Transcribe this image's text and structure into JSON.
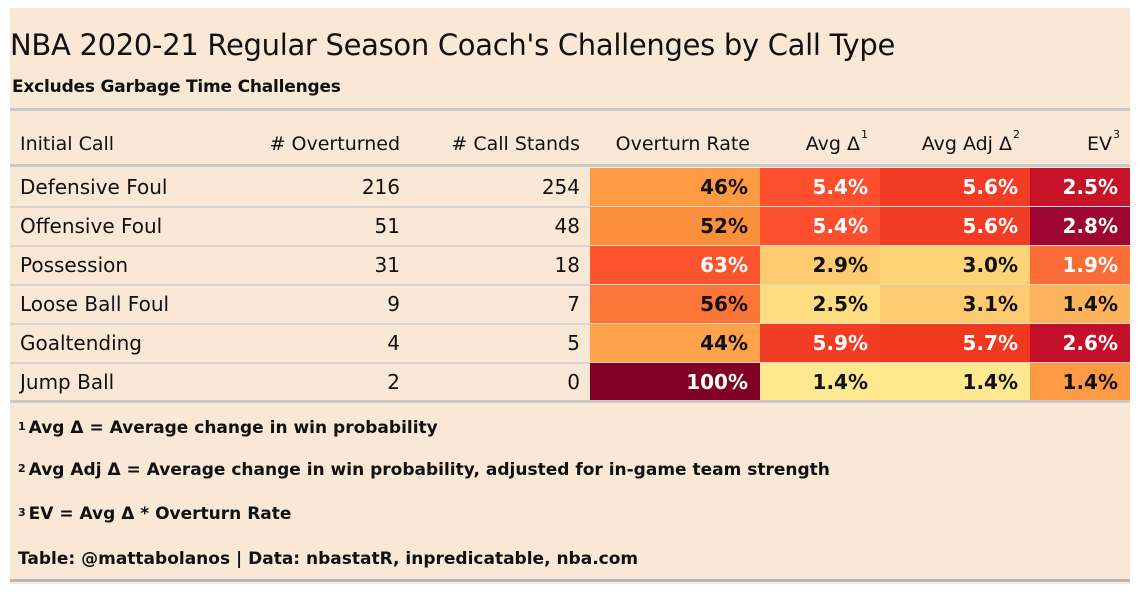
{
  "title": "NBA 2020-21 Regular Season Coach's Challenges by Call Type",
  "subtitle": "Excludes Garbage Time Challenges",
  "chart_data": {
    "type": "table",
    "columns": [
      {
        "label": "Initial Call",
        "sup": ""
      },
      {
        "label": "# Overturned",
        "sup": ""
      },
      {
        "label": "# Call Stands",
        "sup": ""
      },
      {
        "label": "Overturn Rate",
        "sup": ""
      },
      {
        "label": "Avg Δ",
        "sup": "1"
      },
      {
        "label": "Avg Adj Δ",
        "sup": "2"
      },
      {
        "label": "EV",
        "sup": "3"
      }
    ],
    "rows": [
      {
        "call": "Defensive Foul",
        "overturned": "216",
        "stands": "254",
        "rate": "46%",
        "avg": "5.4%",
        "adj": "5.6%",
        "ev": "2.5%",
        "colors": {
          "rate": "#fd9a43",
          "avg": "#fd4f2d",
          "adj": "#f33c25",
          "ev": "#c6132a"
        }
      },
      {
        "call": "Offensive Foul",
        "overturned": "51",
        "stands": "48",
        "rate": "52%",
        "avg": "5.4%",
        "adj": "5.6%",
        "ev": "2.8%",
        "colors": {
          "rate": "#fc8f3c",
          "avg": "#fd4f2d",
          "adj": "#f33c25",
          "ev": "#9e0530"
        }
      },
      {
        "call": "Possession",
        "overturned": "31",
        "stands": "18",
        "rate": "63%",
        "avg": "2.9%",
        "adj": "3.0%",
        "ev": "1.9%",
        "colors": {
          "rate": "#fb542f",
          "avg": "#feca70",
          "adj": "#fed476",
          "ev": "#fc6c37"
        }
      },
      {
        "call": "Loose Ball Foul",
        "overturned": "9",
        "stands": "7",
        "rate": "56%",
        "avg": "2.5%",
        "adj": "3.1%",
        "ev": "1.4%",
        "colors": {
          "rate": "#fc7638",
          "avg": "#fedc80",
          "adj": "#feca70",
          "ev": "#fdb35c"
        }
      },
      {
        "call": "Goaltending",
        "overturned": "4",
        "stands": "5",
        "rate": "44%",
        "avg": "5.9%",
        "adj": "5.7%",
        "ev": "2.6%",
        "colors": {
          "rate": "#fea34b",
          "avg": "#f23c24",
          "adj": "#f0381f",
          "ev": "#c40f2b"
        }
      },
      {
        "call": "Jump Ball",
        "overturned": "2",
        "stands": "0",
        "rate": "100%",
        "avg": "1.4%",
        "adj": "1.4%",
        "ev": "1.4%",
        "colors": {
          "rate": "#800026",
          "avg": "#ffe990",
          "adj": "#ffe990",
          "ev": "#fd9a43"
        }
      }
    ],
    "text_colors": {
      "light": "#ffffff",
      "dark": "#111111"
    }
  },
  "footnotes": [
    {
      "num": "1",
      "text": "Avg Δ = Average change in win probability"
    },
    {
      "num": "2",
      "text": "Avg Adj Δ = Average change in win probability, adjusted for in-game team strength"
    },
    {
      "num": "3",
      "text": "EV = Avg Δ * Overturn Rate"
    }
  ],
  "source": "Table: @mattabolanos | Data: nbastatR, inpredicatable, nba.com"
}
